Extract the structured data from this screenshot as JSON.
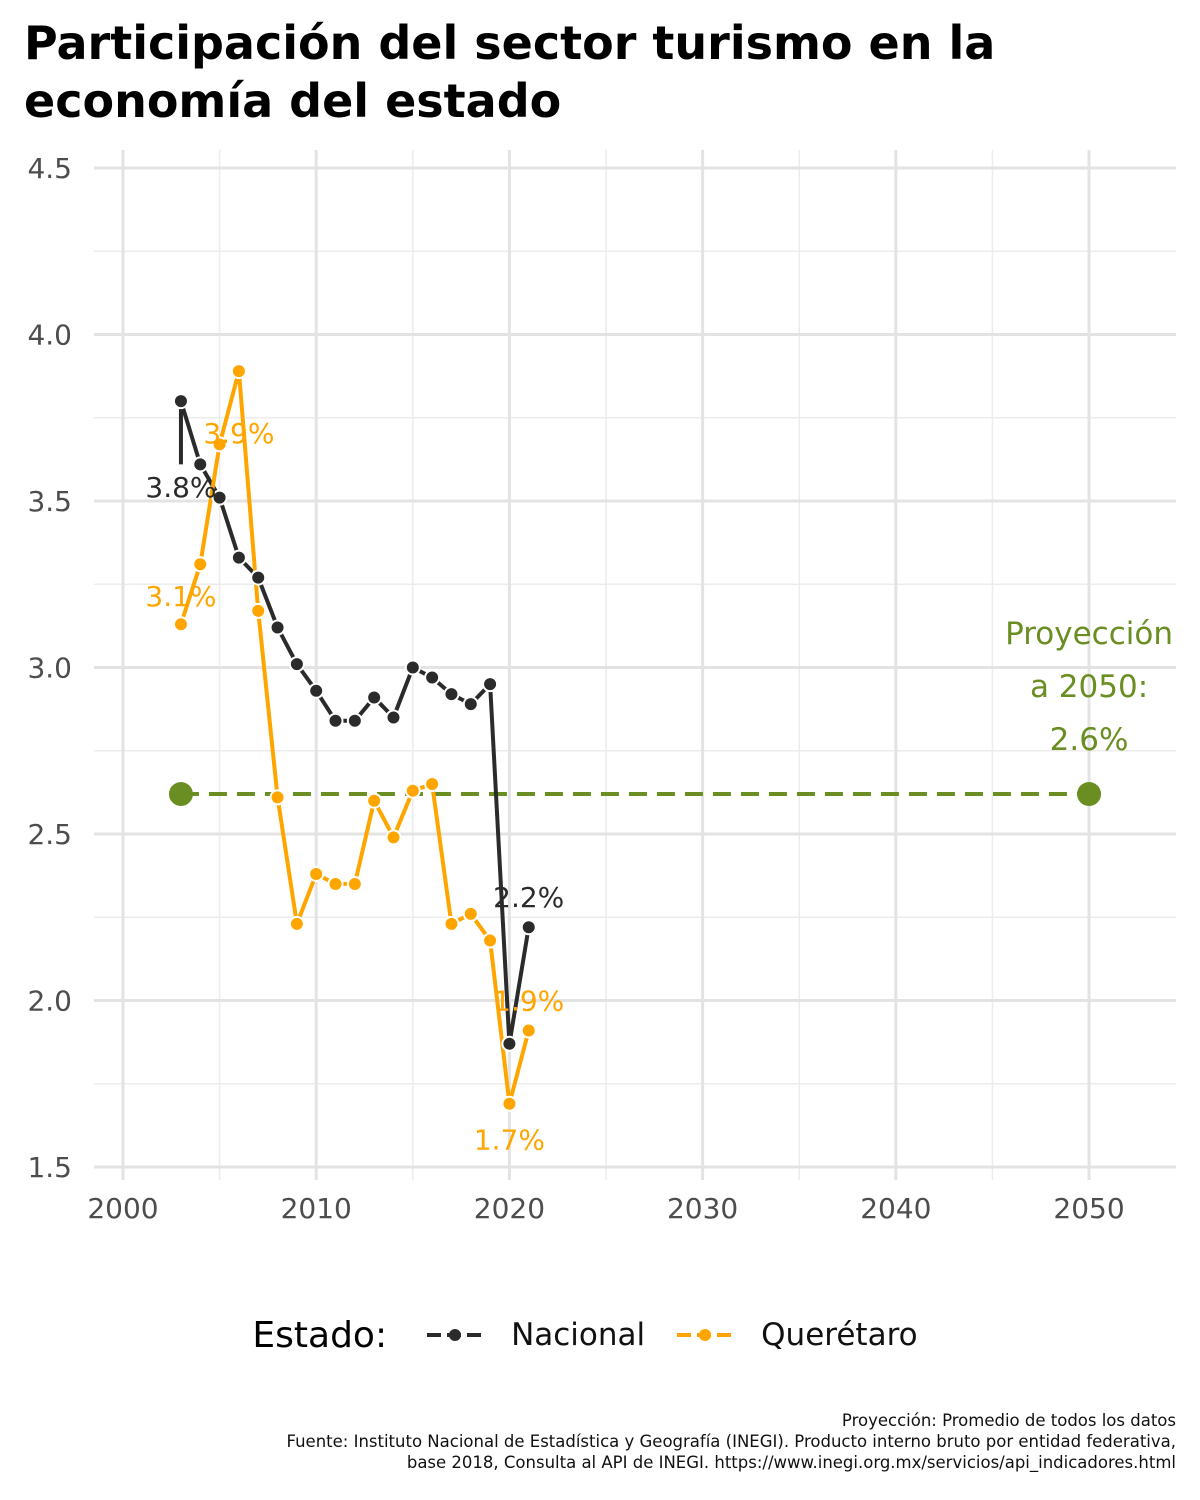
{
  "title": "Participación del sector turismo en la economía del estado",
  "legend": {
    "title": "Estado:",
    "items": [
      {
        "label": "Nacional",
        "color": "#2b2b2b"
      },
      {
        "label": "Querétaro",
        "color": "#ffa500"
      }
    ]
  },
  "caption": {
    "line1": "Proyección: Promedio de todos los datos",
    "line2": "Fuente: Instituto Nacional de Estadística y Geografía (INEGI). Producto interno bruto por entidad federativa,",
    "line3": "base 2018, Consulta al API de INEGI. https://www.inegi.org.mx/servicios/api_indicadores.html"
  },
  "chart_data": {
    "type": "line",
    "title": "Participación del sector turismo en la economía del estado",
    "xlabel": "",
    "ylabel": "",
    "xlim": [
      1998.5,
      2054.5
    ],
    "ylim": [
      1.5,
      4.5
    ],
    "x_ticks": [
      2000,
      2010,
      2020,
      2030,
      2040,
      2050
    ],
    "y_ticks": [
      "1.5",
      "2.0",
      "2.5",
      "3.0",
      "3.5",
      "4.0",
      "4.5"
    ],
    "grid": true,
    "legend_position": "bottom",
    "x": [
      2003,
      2004,
      2005,
      2006,
      2007,
      2008,
      2009,
      2010,
      2011,
      2012,
      2013,
      2014,
      2015,
      2016,
      2017,
      2018,
      2019,
      2020,
      2021
    ],
    "series": [
      {
        "name": "Nacional",
        "color": "#2b2b2b",
        "values": [
          3.8,
          3.61,
          3.51,
          3.33,
          3.27,
          3.12,
          3.01,
          2.93,
          2.84,
          2.84,
          2.91,
          2.85,
          3.0,
          2.97,
          2.92,
          2.89,
          2.95,
          1.87,
          2.22
        ]
      },
      {
        "name": "Querétaro",
        "color": "#ffa500",
        "values": [
          3.13,
          3.31,
          3.67,
          3.89,
          3.17,
          2.61,
          2.23,
          2.38,
          2.35,
          2.35,
          2.6,
          2.49,
          2.63,
          2.65,
          2.23,
          2.26,
          2.18,
          1.69,
          1.91
        ]
      }
    ],
    "projection": {
      "color": "#6b8e23",
      "value": 2.62,
      "x_start": 2003,
      "x_end": 2050,
      "label_lines": [
        "Proyección",
        "a 2050:",
        "2.6%"
      ]
    },
    "annotations": [
      {
        "text": "3.8%",
        "x": 2003,
        "y": 3.8,
        "series": "Nacional"
      },
      {
        "text": "2.2%",
        "x": 2021,
        "y": 2.22,
        "series": "Nacional"
      },
      {
        "text": "3.9%",
        "x": 2006,
        "y": 3.89,
        "series": "Querétaro"
      },
      {
        "text": "3.1%",
        "x": 2003,
        "y": 3.13,
        "series": "Querétaro"
      },
      {
        "text": "1.9%",
        "x": 2021,
        "y": 1.91,
        "series": "Querétaro"
      },
      {
        "text": "1.7%",
        "x": 2020,
        "y": 1.69,
        "series": "Querétaro"
      }
    ]
  }
}
